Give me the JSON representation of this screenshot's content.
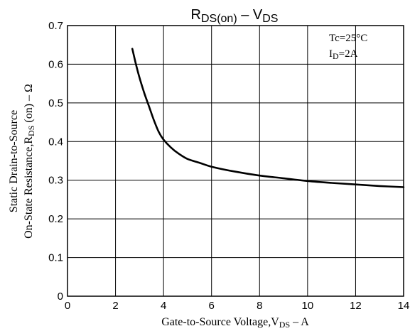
{
  "chart_data": {
    "type": "line",
    "title": {
      "main": "R",
      "sub": "DS(on)",
      "sep": " – ",
      "main2": "V",
      "sub2": "DS"
    },
    "xlabel": {
      "pre": "Gate-to-Source Voltage,V",
      "sub": "DS",
      "post": " – A"
    },
    "ylabel": {
      "line1": "Static Drain-to-Source",
      "line2_pre": "On-State Resistance,R",
      "line2_sub": "DS",
      "line2_post": " (on) – Ω"
    },
    "annotations": {
      "tc": "Tc=25°C",
      "id_pre": "I",
      "id_sub": "D",
      "id_post": "=2A"
    },
    "xlim": [
      0,
      14
    ],
    "ylim": [
      0,
      0.7
    ],
    "xticks": [
      "0",
      "2",
      "4",
      "6",
      "8",
      "10",
      "12",
      "14"
    ],
    "yticks": [
      "0",
      "0.1",
      "0.2",
      "0.3",
      "0.4",
      "0.5",
      "0.6",
      "0.7"
    ],
    "grid": true,
    "series": [
      {
        "x": [
          2.7,
          2.85,
          3.0,
          3.2,
          3.4,
          3.6,
          3.8,
          4.0,
          4.3,
          4.6,
          5.0,
          5.5,
          6.0,
          7.0,
          8.0,
          9.0,
          10.0,
          11.0,
          12.0,
          13.0,
          14.0
        ],
        "y": [
          0.64,
          0.6,
          0.565,
          0.525,
          0.49,
          0.455,
          0.425,
          0.405,
          0.385,
          0.37,
          0.355,
          0.345,
          0.335,
          0.322,
          0.312,
          0.305,
          0.298,
          0.293,
          0.289,
          0.285,
          0.282
        ]
      }
    ]
  }
}
